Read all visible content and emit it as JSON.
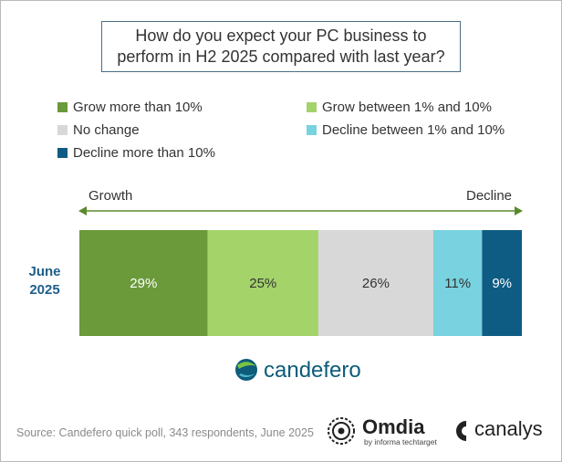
{
  "title": "How do you expect your PC business to perform in H2 2025 compared with last year?",
  "axis": {
    "left_label": "Growth",
    "right_label": "Decline"
  },
  "colors": {
    "grow_more": "#6a9a3a",
    "grow_between": "#a4d36a",
    "no_change": "#d8d8d8",
    "decline_between": "#78d2df",
    "decline_more": "#0e5c83",
    "arrow": "#5b8a2e"
  },
  "chart_data": {
    "type": "bar",
    "orientation": "horizontal-stacked-100",
    "categories": [
      "June 2025"
    ],
    "series": [
      {
        "name": "Grow more than 10%",
        "values": [
          29
        ],
        "label": "29%"
      },
      {
        "name": "Grow between 1% and 10%",
        "values": [
          25
        ],
        "label": "25%"
      },
      {
        "name": "No change",
        "values": [
          26
        ],
        "label": "26%"
      },
      {
        "name": "Decline between 1% and 10%",
        "values": [
          11
        ],
        "label": "11%"
      },
      {
        "name": "Decline more than 10%",
        "values": [
          9
        ],
        "label": "9%"
      }
    ],
    "title": "How do you expect your PC business to perform in H2 2025 compared with last year?",
    "xlim": [
      0,
      100
    ],
    "legend_position": "top"
  },
  "row_label": {
    "line1": "June",
    "line2": "2025"
  },
  "logo": {
    "name": "candefero",
    "icon": "globe-icon"
  },
  "source": "Source: Candefero quick poll, 343 respondents, June 2025",
  "brands": {
    "omdia": "Omdia",
    "omdia_sub": "by informa techtarget",
    "canalys": "canalys"
  }
}
